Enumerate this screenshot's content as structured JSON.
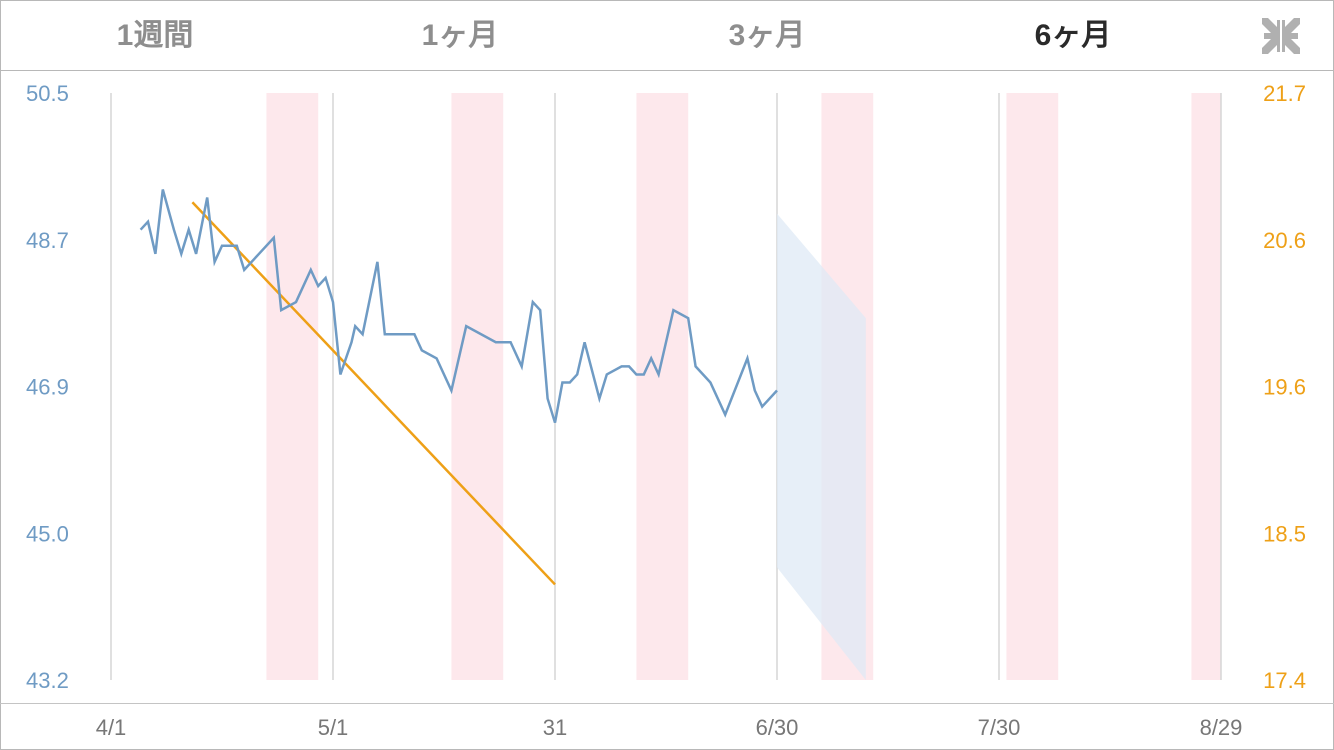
{
  "tabs": [
    {
      "label": "1週間",
      "active": false
    },
    {
      "label": "1ヶ月",
      "active": false
    },
    {
      "label": "3ヶ月",
      "active": false
    },
    {
      "label": "6ヶ月",
      "active": true
    }
  ],
  "collapse_icon": "collapse-arrows-icon",
  "colors": {
    "weight_line": "#6f9bc4",
    "left_axis_text": "#6f9bc4",
    "right_axis_text": "#eea017",
    "trend_line": "#eea017",
    "forecast_band": "#dfeaf6",
    "period_band": "#fde8ec",
    "grid": "#d5d5d5",
    "x_axis_text": "#777777"
  },
  "chart_data": {
    "type": "line",
    "x_ticks": [
      "4/1",
      "5/1",
      "31",
      "6/30",
      "7/30",
      "8/29"
    ],
    "x_tick_days": [
      0,
      30,
      60,
      90,
      120,
      150
    ],
    "y_left": {
      "min": 43.2,
      "max": 50.5,
      "ticks": [
        "50.5",
        "48.7",
        "46.9",
        "45.0",
        "43.2"
      ]
    },
    "y_right": {
      "min": 17.4,
      "max": 21.7,
      "ticks": [
        "21.7",
        "20.6",
        "19.6",
        "18.5",
        "17.4"
      ]
    },
    "series": [
      {
        "axis": "left",
        "points": [
          [
            4,
            48.8
          ],
          [
            5,
            48.9
          ],
          [
            6,
            48.5
          ],
          [
            7,
            49.3
          ],
          [
            8.5,
            48.8
          ],
          [
            9.5,
            48.5
          ],
          [
            10.5,
            48.8
          ],
          [
            11.5,
            48.5
          ],
          [
            13,
            49.2
          ],
          [
            14,
            48.4
          ],
          [
            15,
            48.6
          ],
          [
            17,
            48.6
          ],
          [
            18,
            48.3
          ],
          [
            20,
            48.5
          ],
          [
            22,
            48.7
          ],
          [
            23,
            47.8
          ],
          [
            25,
            47.9
          ],
          [
            27,
            48.3
          ],
          [
            28,
            48.1
          ],
          [
            29,
            48.2
          ],
          [
            30,
            47.9
          ],
          [
            31,
            47.0
          ],
          [
            32.5,
            47.4
          ],
          [
            33,
            47.6
          ],
          [
            34,
            47.5
          ],
          [
            36,
            48.4
          ],
          [
            37,
            47.5
          ],
          [
            41,
            47.5
          ],
          [
            42,
            47.3
          ],
          [
            44,
            47.2
          ],
          [
            46,
            46.8
          ],
          [
            48,
            47.6
          ],
          [
            52,
            47.4
          ],
          [
            54,
            47.4
          ],
          [
            55.5,
            47.1
          ],
          [
            57,
            47.9
          ],
          [
            58,
            47.8
          ],
          [
            59,
            46.7
          ],
          [
            60,
            46.4
          ],
          [
            61,
            46.9
          ],
          [
            62,
            46.9
          ],
          [
            63,
            47.0
          ],
          [
            64,
            47.4
          ],
          [
            66,
            46.7
          ],
          [
            67,
            47.0
          ],
          [
            69,
            47.1
          ],
          [
            70,
            47.1
          ],
          [
            71,
            47.0
          ],
          [
            72,
            47.0
          ],
          [
            73,
            47.2
          ],
          [
            74,
            47.0
          ],
          [
            76,
            47.8
          ],
          [
            78,
            47.7
          ],
          [
            79,
            47.1
          ],
          [
            81,
            46.9
          ],
          [
            83,
            46.5
          ],
          [
            86,
            47.2
          ],
          [
            87,
            46.8
          ],
          [
            88,
            46.6
          ],
          [
            90,
            46.8
          ]
        ]
      },
      {
        "axis": "right",
        "points": [
          [
            11,
            20.9
          ],
          [
            60,
            18.1
          ]
        ]
      }
    ],
    "forecast_band": {
      "axis": "left",
      "upper": [
        [
          90,
          49.0
        ],
        [
          102,
          47.7
        ]
      ],
      "lower": [
        [
          90,
          44.6
        ],
        [
          102,
          43.2
        ]
      ]
    },
    "period_bands": [
      [
        21,
        28
      ],
      [
        46,
        53
      ],
      [
        71,
        78
      ],
      [
        96,
        103
      ],
      [
        121,
        128
      ],
      [
        146,
        150
      ]
    ]
  }
}
